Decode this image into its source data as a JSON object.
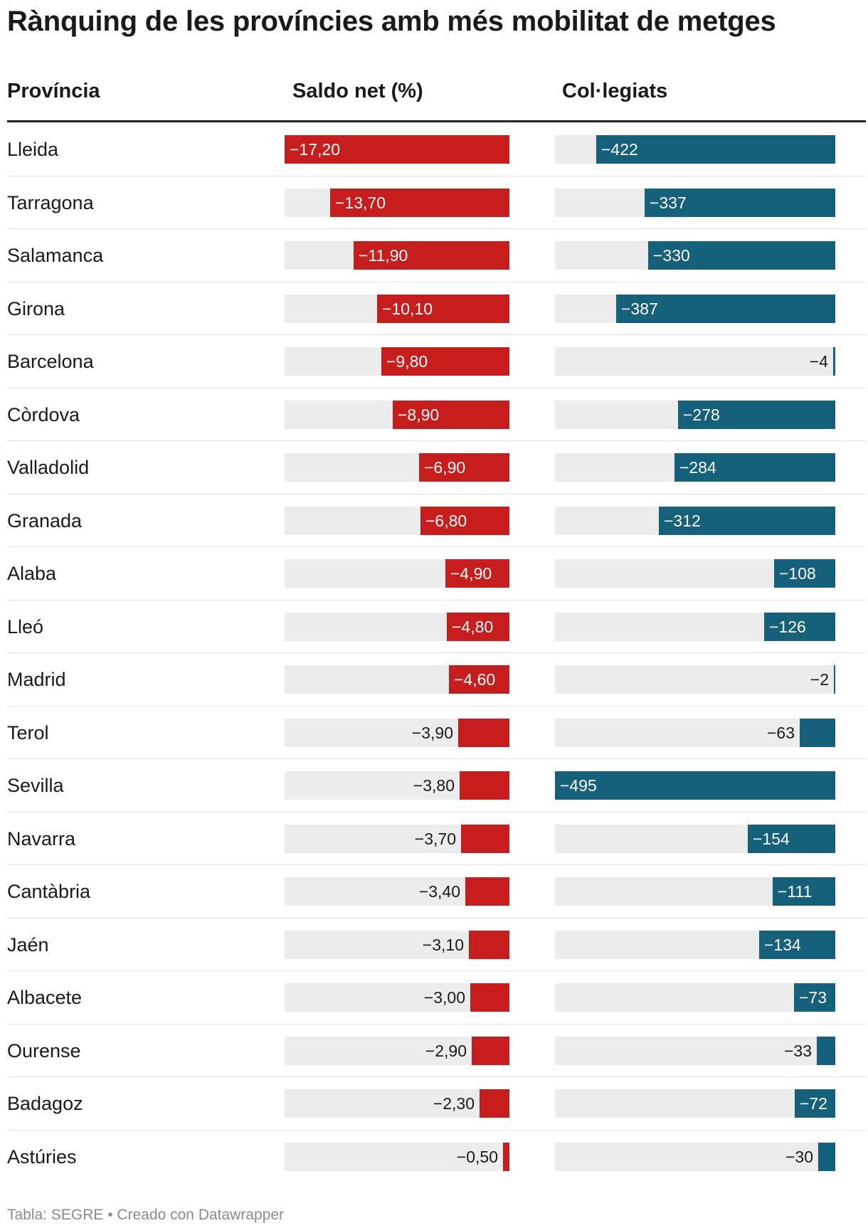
{
  "title": "Rànquing de les províncies amb més mobilitat de metges",
  "columns": {
    "provincia": "Província",
    "saldo": "Saldo net (%)",
    "colegiats": "Col·legiats"
  },
  "colors": {
    "saldo_bar": "#c71e1d",
    "colegiats_bar": "#15607a",
    "track": "#ececec"
  },
  "footer": {
    "text": "Tabla: SEGRE • Creado con Datawrapper"
  },
  "chart_data": {
    "type": "table",
    "rows": [
      {
        "provincia": "Lleida",
        "saldo": -17.2,
        "saldo_label": "−17,20",
        "colegiats": -422,
        "colegiats_label": "−422"
      },
      {
        "provincia": "Tarragona",
        "saldo": -13.7,
        "saldo_label": "−13,70",
        "colegiats": -337,
        "colegiats_label": "−337"
      },
      {
        "provincia": "Salamanca",
        "saldo": -11.9,
        "saldo_label": "−11,90",
        "colegiats": -330,
        "colegiats_label": "−330"
      },
      {
        "provincia": "Girona",
        "saldo": -10.1,
        "saldo_label": "−10,10",
        "colegiats": -387,
        "colegiats_label": "−387"
      },
      {
        "provincia": "Barcelona",
        "saldo": -9.8,
        "saldo_label": "−9,80",
        "colegiats": -4,
        "colegiats_label": "−4"
      },
      {
        "provincia": "Còrdova",
        "saldo": -8.9,
        "saldo_label": "−8,90",
        "colegiats": -278,
        "colegiats_label": "−278"
      },
      {
        "provincia": "Valladolid",
        "saldo": -6.9,
        "saldo_label": "−6,90",
        "colegiats": -284,
        "colegiats_label": "−284"
      },
      {
        "provincia": "Granada",
        "saldo": -6.8,
        "saldo_label": "−6,80",
        "colegiats": -312,
        "colegiats_label": "−312"
      },
      {
        "provincia": "Alaba",
        "saldo": -4.9,
        "saldo_label": "−4,90",
        "colegiats": -108,
        "colegiats_label": "−108"
      },
      {
        "provincia": "Lleó",
        "saldo": -4.8,
        "saldo_label": "−4,80",
        "colegiats": -126,
        "colegiats_label": "−126"
      },
      {
        "provincia": "Madrid",
        "saldo": -4.6,
        "saldo_label": "−4,60",
        "colegiats": -2,
        "colegiats_label": "−2"
      },
      {
        "provincia": "Terol",
        "saldo": -3.9,
        "saldo_label": "−3,90",
        "colegiats": -63,
        "colegiats_label": "−63"
      },
      {
        "provincia": "Sevilla",
        "saldo": -3.8,
        "saldo_label": "−3,80",
        "colegiats": -495,
        "colegiats_label": "−495"
      },
      {
        "provincia": "Navarra",
        "saldo": -3.7,
        "saldo_label": "−3,70",
        "colegiats": -154,
        "colegiats_label": "−154"
      },
      {
        "provincia": "Cantàbria",
        "saldo": -3.4,
        "saldo_label": "−3,40",
        "colegiats": -111,
        "colegiats_label": "−111"
      },
      {
        "provincia": "Jaén",
        "saldo": -3.1,
        "saldo_label": "−3,10",
        "colegiats": -134,
        "colegiats_label": "−134"
      },
      {
        "provincia": "Albacete",
        "saldo": -3.0,
        "saldo_label": "−3,00",
        "colegiats": -73,
        "colegiats_label": "−73"
      },
      {
        "provincia": "Ourense",
        "saldo": -2.9,
        "saldo_label": "−2,90",
        "colegiats": -33,
        "colegiats_label": "−33"
      },
      {
        "provincia": "Badagoz",
        "saldo": -2.3,
        "saldo_label": "−2,30",
        "colegiats": -72,
        "colegiats_label": "−72"
      },
      {
        "provincia": "Astúries",
        "saldo": -0.5,
        "saldo_label": "−0,50",
        "colegiats": -30,
        "colegiats_label": "−30"
      }
    ],
    "saldo_max_abs": 17.2,
    "colegiats_max_abs": 495
  }
}
